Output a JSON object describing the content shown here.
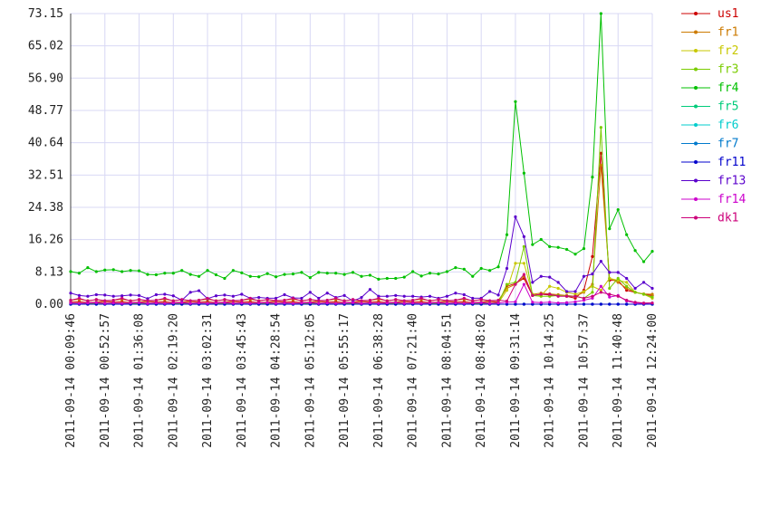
{
  "chart_data": {
    "type": "line",
    "categories": [
      "2011-09-14 00:09:46",
      null,
      null,
      null,
      "2011-09-14 00:52:57",
      null,
      null,
      null,
      "2011-09-14 01:36:08",
      null,
      null,
      null,
      "2011-09-14 02:19:20",
      null,
      null,
      null,
      "2011-09-14 03:02:31",
      null,
      null,
      null,
      "2011-09-14 03:45:43",
      null,
      null,
      null,
      "2011-09-14 04:28:54",
      null,
      null,
      null,
      "2011-09-14 05:12:05",
      null,
      null,
      null,
      "2011-09-14 05:55:17",
      null,
      null,
      null,
      "2011-09-14 06:38:28",
      null,
      null,
      null,
      "2011-09-14 07:21:40",
      null,
      null,
      null,
      "2011-09-14 08:04:51",
      null,
      null,
      null,
      "2011-09-14 08:48:02",
      null,
      null,
      null,
      "2011-09-14 09:31:14",
      null,
      null,
      null,
      "2011-09-14 10:14:25",
      null,
      null,
      null,
      "2011-09-14 10:57:37",
      null,
      null,
      null,
      "2011-09-14 11:40:48",
      null,
      null,
      null,
      "2011-09-14 12:24:00"
    ],
    "ylim": [
      0,
      73.15
    ],
    "yticks": [
      {
        "value": 0,
        "label": "0.00"
      },
      8.13,
      16.26,
      24.38,
      32.51,
      40.64,
      48.77,
      {
        "value": 56.9,
        "label": "56.90"
      },
      65.02,
      73.15
    ],
    "grid": true,
    "legend": "right",
    "series": [
      {
        "name": "us1",
        "color": "#cc0000",
        "values": [
          0.5,
          0.6,
          0.4,
          0.5,
          0.7,
          0.5,
          0.6,
          0.4,
          0.5,
          0.7,
          0.5,
          0.6,
          0.4,
          0.5,
          0.7,
          0.5,
          0.6,
          0.4,
          0.5,
          0.7,
          0.5,
          0.6,
          0.4,
          0.5,
          0.7,
          0.5,
          0.6,
          0.4,
          0.5,
          0.7,
          0.5,
          0.6,
          0.4,
          0.5,
          0.7,
          0.5,
          0.6,
          0.4,
          0.5,
          0.7,
          0.5,
          0.6,
          0.4,
          0.5,
          0.7,
          0.5,
          0.6,
          0.4,
          0.5,
          0.7,
          0.5,
          4.5,
          5.2,
          6.5,
          2.2,
          2.5,
          2.3,
          2.2,
          2.0,
          1.5,
          3.5,
          12,
          38,
          6,
          6,
          3.5,
          3,
          2.5,
          2.2
        ]
      },
      {
        "name": "fr1",
        "color": "#cc7a00",
        "values": [
          1.0,
          1.2,
          0.9,
          1.1,
          0.8,
          1.0,
          1.2,
          0.9,
          1.1,
          0.8,
          1.0,
          1.2,
          0.9,
          1.1,
          0.8,
          1.0,
          1.2,
          0.9,
          1.1,
          0.8,
          1.0,
          1.2,
          0.9,
          1.1,
          0.8,
          1.0,
          1.2,
          0.9,
          1.1,
          0.8,
          1.0,
          1.2,
          0.9,
          1.1,
          0.8,
          1.0,
          1.2,
          0.9,
          1.1,
          0.8,
          1.0,
          1.2,
          0.9,
          1.1,
          0.8,
          1.0,
          1.2,
          0.9,
          1.1,
          0.8,
          1.0,
          4.0,
          5.0,
          7.0,
          2.5,
          2.8,
          2.6,
          2.4,
          2.2,
          2.0,
          3.0,
          5.0,
          35,
          6.5,
          5.5,
          4.0,
          3.0,
          2.6,
          2.5
        ]
      },
      {
        "name": "fr2",
        "color": "#c8c800",
        "values": [
          0.2,
          0.3,
          0.2,
          0.4,
          0.3,
          0.2,
          0.3,
          0.2,
          0.4,
          0.3,
          0.2,
          0.3,
          0.2,
          0.4,
          0.3,
          0.2,
          0.3,
          0.2,
          0.4,
          0.3,
          0.2,
          0.3,
          0.2,
          0.4,
          0.3,
          0.2,
          0.3,
          0.2,
          0.4,
          0.3,
          0.2,
          0.3,
          0.2,
          0.4,
          0.3,
          0.2,
          0.3,
          0.2,
          0.4,
          0.3,
          0.2,
          0.3,
          0.2,
          0.4,
          0.3,
          0.2,
          0.3,
          0.2,
          0.4,
          0.3,
          0.3,
          3.5,
          10.3,
          10.3,
          2.5,
          2.2,
          4.5,
          4.0,
          3.0,
          2.5,
          3.2,
          4.5,
          3.5,
          6.5,
          6.0,
          5.5,
          3.0,
          2.5,
          1.5
        ]
      },
      {
        "name": "fr3",
        "color": "#7acc00",
        "values": [
          0.1,
          0.2,
          0.1,
          0.2,
          0.1,
          0.1,
          0.2,
          0.1,
          0.2,
          0.1,
          0.1,
          0.2,
          0.1,
          0.2,
          0.1,
          0.1,
          0.2,
          0.1,
          0.2,
          0.1,
          0.1,
          0.2,
          0.1,
          0.2,
          0.1,
          0.1,
          0.2,
          0.1,
          0.2,
          0.1,
          0.1,
          0.2,
          0.1,
          0.2,
          0.1,
          0.1,
          0.2,
          0.1,
          0.2,
          0.1,
          0.1,
          0.2,
          0.1,
          0.2,
          0.1,
          0.1,
          0.2,
          0.1,
          0.2,
          0.1,
          0.2,
          5,
          5.5,
          14.5,
          2.2,
          2.0,
          2.0,
          2.2,
          2.0,
          2.0,
          1.5,
          3.0,
          44.5,
          4.0,
          6.5,
          4.5,
          3.0,
          2.5,
          1.8
        ]
      },
      {
        "name": "fr4",
        "color": "#00c000",
        "values": [
          8.2,
          7.8,
          9.2,
          8.2,
          8.6,
          8.7,
          8.2,
          8.5,
          8.4,
          7.5,
          7.4,
          7.8,
          7.8,
          8.5,
          7.5,
          7.0,
          8.5,
          7.4,
          6.5,
          8.5,
          7.9,
          7.0,
          6.9,
          7.7,
          6.9,
          7.5,
          7.6,
          8.0,
          6.7,
          8.0,
          7.8,
          7.8,
          7.5,
          8.0,
          7.0,
          7.3,
          6.3,
          6.5,
          6.5,
          6.8,
          8.2,
          7.1,
          7.8,
          7.6,
          8.2,
          9.2,
          8.8,
          7.0,
          9.0,
          8.5,
          9.4,
          17.5,
          51,
          33,
          15,
          16.3,
          14.5,
          14.3,
          13.8,
          12.6,
          14,
          32,
          73.15,
          19,
          23.8,
          17.5,
          13.5,
          10.7,
          13.3
        ]
      },
      {
        "name": "fr5",
        "color": "#00cc7a",
        "values": [
          0,
          0,
          0,
          0,
          0,
          0,
          0,
          0,
          0,
          0,
          0,
          0,
          0,
          0,
          0,
          0,
          0,
          0,
          0,
          0,
          0,
          0,
          0,
          0,
          0,
          0,
          0,
          0,
          0,
          0,
          0,
          0,
          0,
          0,
          0,
          0,
          0,
          0,
          0,
          0,
          0,
          0,
          0,
          0,
          0,
          0,
          0,
          0,
          0,
          0,
          0,
          0,
          0,
          0,
          0,
          0,
          0,
          0,
          0,
          0,
          0,
          0,
          0,
          0,
          0,
          0,
          0,
          0,
          0
        ]
      },
      {
        "name": "fr6",
        "color": "#00cccc",
        "values": [
          0,
          0,
          0,
          0,
          0,
          0,
          0,
          0,
          0,
          0,
          0,
          0,
          0,
          0,
          0,
          0,
          0,
          0,
          0,
          0,
          0,
          0,
          0,
          0,
          0,
          0,
          0,
          0,
          0,
          0,
          0,
          0,
          0,
          0,
          0,
          0,
          0,
          0,
          0,
          0,
          0,
          0,
          0,
          0,
          0,
          0,
          0,
          0,
          0,
          0,
          0,
          0,
          0,
          0,
          0,
          0,
          0,
          0,
          0,
          0,
          0,
          0,
          0,
          0,
          0,
          0,
          0,
          0,
          0
        ]
      },
      {
        "name": "fr7",
        "color": "#007acc",
        "values": [
          0,
          0,
          0,
          0,
          0,
          0,
          0,
          0,
          0,
          0,
          0,
          0,
          0,
          0,
          0,
          0,
          0,
          0,
          0,
          0,
          0,
          0,
          0,
          0,
          0,
          0,
          0,
          0,
          0,
          0,
          0,
          0,
          0,
          0,
          0,
          0,
          0,
          0,
          0,
          0,
          0,
          0,
          0,
          0,
          0,
          0,
          0,
          0,
          0,
          0,
          0,
          0,
          0,
          0,
          0,
          0,
          0,
          0,
          0,
          0,
          0,
          0,
          0,
          0,
          0,
          0,
          0,
          0,
          0
        ]
      },
      {
        "name": "fr11",
        "color": "#0000cc",
        "values": [
          0,
          0,
          0,
          0,
          0,
          0,
          0,
          0,
          0,
          0,
          0,
          0,
          0,
          0,
          0,
          0,
          0,
          0,
          0,
          0,
          0,
          0,
          0,
          0,
          0,
          0,
          0,
          0,
          0,
          0,
          0,
          0,
          0,
          0,
          0,
          0,
          0,
          0,
          0,
          0,
          0,
          0,
          0,
          0,
          0,
          0,
          0,
          0,
          0,
          0,
          0,
          0,
          0,
          0,
          0,
          0,
          0,
          0,
          0,
          0,
          0,
          0,
          0,
          0,
          0,
          0,
          0,
          0,
          0
        ]
      },
      {
        "name": "fr13",
        "color": "#5a00cc",
        "values": [
          2.8,
          2.2,
          2.0,
          2.4,
          2.3,
          2.0,
          2.1,
          2.3,
          2.2,
          1.4,
          2.4,
          2.5,
          2.1,
          1.0,
          3.0,
          3.4,
          1.4,
          2.1,
          2.3,
          2.0,
          2.5,
          1.5,
          1.7,
          1.5,
          1.5,
          2.4,
          1.6,
          1.5,
          3.0,
          1.5,
          2.8,
          1.7,
          2.2,
          0.8,
          1.7,
          3.7,
          2.0,
          2.0,
          2.2,
          2.0,
          2.0,
          1.8,
          2.0,
          1.5,
          2.0,
          2.8,
          2.4,
          1.5,
          1.5,
          3.2,
          2.3,
          9,
          22,
          17,
          5.5,
          7,
          6.8,
          5.5,
          3.2,
          3.2,
          7,
          7.6,
          10.8,
          8,
          8,
          6.5,
          4,
          5.5,
          4
        ]
      },
      {
        "name": "fr14",
        "color": "#cc00cc",
        "values": [
          0.3,
          0.2,
          0.3,
          0.4,
          0.2,
          0.3,
          0.2,
          0.3,
          0.4,
          0.2,
          0.3,
          0.2,
          0.3,
          0.4,
          0.2,
          0.3,
          0.2,
          0.3,
          0.4,
          0.2,
          0.3,
          0.2,
          0.3,
          0.4,
          0.2,
          0.3,
          0.2,
          0.3,
          0.4,
          0.2,
          0.3,
          0.2,
          0.3,
          0.4,
          0.2,
          0.3,
          0.2,
          0.3,
          0.4,
          0.2,
          0.3,
          0.2,
          0.3,
          0.4,
          0.2,
          0.3,
          0.2,
          0.3,
          0.4,
          0.2,
          0.3,
          0.5,
          0.6,
          5.0,
          0.5,
          0.4,
          0.5,
          0.3,
          0.4,
          0.6,
          1.0,
          1.5,
          4.5,
          1.8,
          2.2,
          0.8,
          0.3,
          0.2,
          0.3
        ]
      },
      {
        "name": "dk1",
        "color": "#cc007a",
        "values": [
          1.0,
          1.5,
          0.8,
          1.2,
          0.9,
          1.0,
          1.5,
          0.8,
          1.2,
          0.9,
          1.0,
          1.5,
          0.8,
          1.2,
          0.9,
          1.0,
          1.5,
          0.8,
          1.2,
          0.9,
          1.0,
          1.5,
          0.8,
          1.2,
          0.9,
          1.0,
          1.5,
          0.8,
          1.2,
          0.9,
          1.0,
          1.5,
          0.8,
          1.2,
          0.9,
          1.0,
          1.5,
          0.8,
          1.2,
          0.9,
          1.0,
          1.5,
          0.8,
          1.2,
          0.9,
          1.0,
          1.5,
          0.8,
          1.2,
          0.9,
          1.0,
          0.8,
          5.0,
          7.5,
          2.2,
          2.5,
          2.5,
          2.0,
          2.0,
          2.0,
          1.5,
          2.0,
          3.0,
          2.5,
          2.0,
          1.0,
          0.5,
          0.3,
          0.3
        ]
      }
    ]
  }
}
